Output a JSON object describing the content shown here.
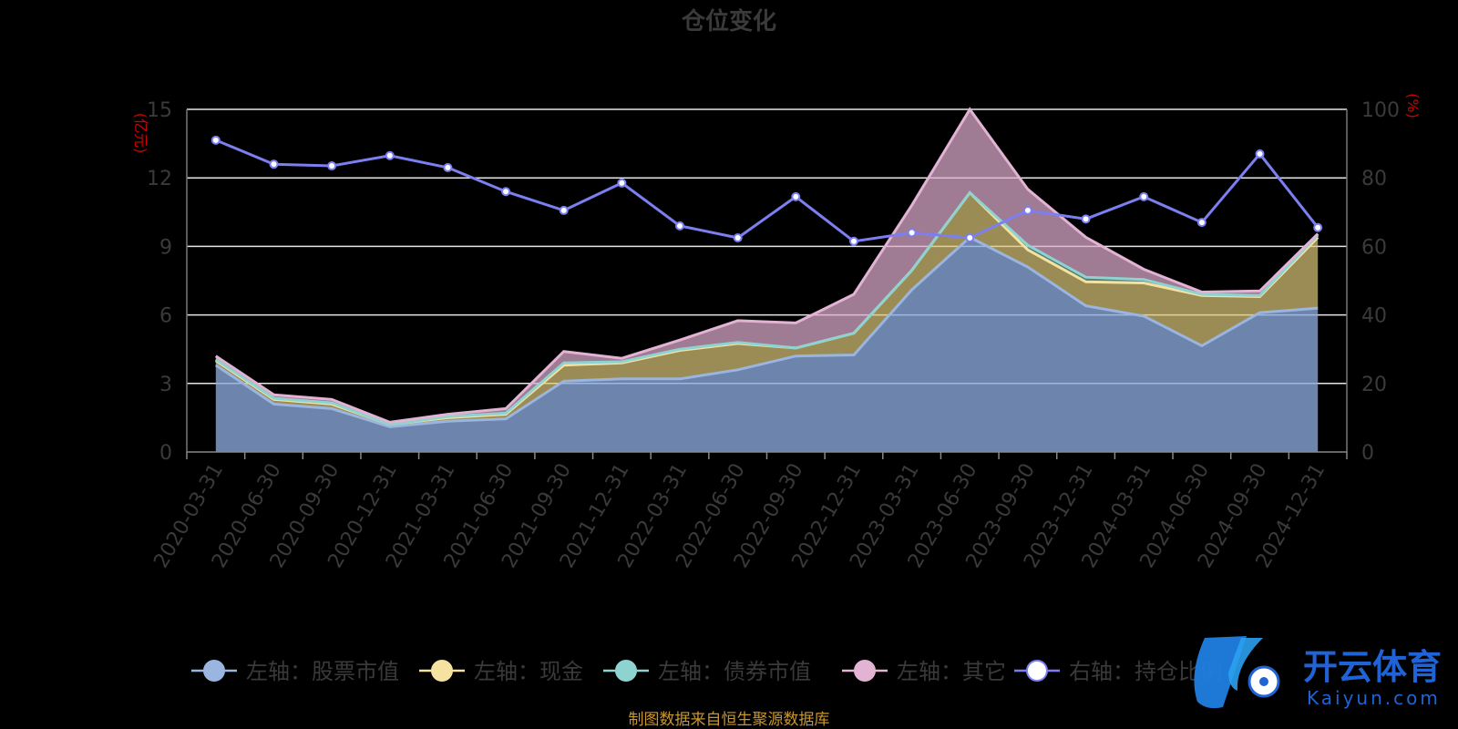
{
  "chart_data": {
    "type": "area",
    "title": "仓位变化",
    "left_axis_unit": "(亿元)",
    "right_axis_unit": "(%)",
    "categories": [
      "2020-03-31",
      "2020-06-30",
      "2020-09-30",
      "2020-12-31",
      "2021-03-31",
      "2021-06-30",
      "2021-09-30",
      "2021-12-31",
      "2022-03-31",
      "2022-06-30",
      "2022-09-30",
      "2022-12-31",
      "2023-03-31",
      "2023-06-30",
      "2023-09-30",
      "2023-12-31",
      "2024-03-31",
      "2024-06-30",
      "2024-09-30",
      "2024-12-31"
    ],
    "left_ylim": [
      0,
      15
    ],
    "left_ticks": [
      "0",
      "3",
      "6",
      "9",
      "12",
      "15"
    ],
    "right_ylim": [
      0,
      100
    ],
    "right_ticks": [
      "0",
      "20",
      "40",
      "60",
      "80",
      "100"
    ],
    "grid": true,
    "legend_position": "bottom",
    "series": [
      {
        "name": "左轴：股票市值",
        "axis": "left",
        "stack_level": 1,
        "color": "#9ab5e0",
        "values": [
          3.8,
          2.1,
          1.9,
          1.1,
          1.35,
          1.45,
          3.1,
          3.2,
          3.2,
          3.6,
          4.2,
          4.25,
          7.1,
          9.4,
          8.1,
          6.4,
          5.95,
          4.65,
          6.1,
          6.3
        ]
      },
      {
        "name": "左轴：现金",
        "axis": "left",
        "stack_level": 2,
        "color": "#f5e2a0",
        "values": [
          0.2,
          0.2,
          0.2,
          0.1,
          0.15,
          0.2,
          0.7,
          0.7,
          1.25,
          1.15,
          0.35,
          0.95,
          0.85,
          1.95,
          0.75,
          1.05,
          1.45,
          2.2,
          0.7,
          3.1
        ]
      },
      {
        "name": "左轴：债券市值",
        "axis": "left",
        "stack_level": 3,
        "color": "#8fd3d0",
        "values": [
          0.05,
          0.05,
          0.05,
          0,
          0.05,
          0.05,
          0.1,
          0.05,
          0.05,
          0.05,
          0,
          0,
          0,
          0,
          0.2,
          0.2,
          0.15,
          0.05,
          0.05,
          0.1
        ]
      },
      {
        "name": "左轴：其它",
        "axis": "left",
        "stack_level": 4,
        "color": "#e3b3d3",
        "values": [
          0.15,
          0.15,
          0.15,
          0.1,
          0.1,
          0.2,
          0.5,
          0.15,
          0.4,
          0.95,
          1.1,
          1.7,
          2.85,
          3.65,
          2.45,
          1.75,
          0.45,
          0.1,
          0.2,
          0.05
        ]
      },
      {
        "name": "右轴：持仓比例",
        "axis": "right",
        "color": "#7b7ff0",
        "values": [
          91,
          84,
          83.5,
          86.5,
          83,
          76,
          70.5,
          78.5,
          66,
          62.5,
          74.5,
          61.5,
          64,
          62.5,
          70.5,
          68,
          74.5,
          67,
          87,
          65.5
        ]
      }
    ],
    "source_note": "制图数据来自恒生聚源数据库"
  },
  "watermark": {
    "brand": "开云体育",
    "domain": "Kaiyun.com"
  }
}
